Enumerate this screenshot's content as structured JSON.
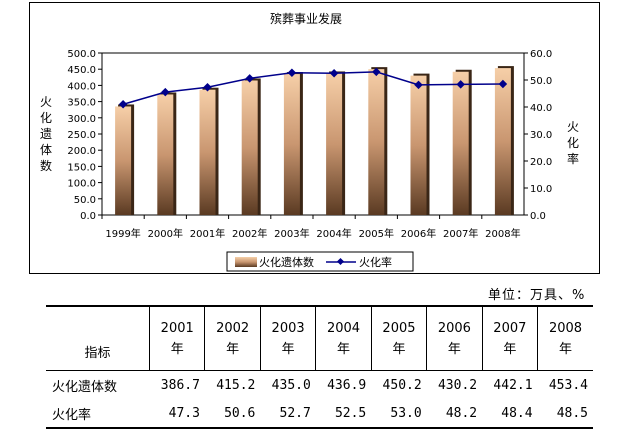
{
  "chart_data": {
    "type": "bar",
    "title": "殡葬事业发展",
    "categories": [
      "1999年",
      "2000年",
      "2001年",
      "2002年",
      "2003年",
      "2004年",
      "2005年",
      "2006年",
      "2007年",
      "2008年"
    ],
    "series": [
      {
        "name": "火化遗体数",
        "type": "bar",
        "axis": "left",
        "values": [
          335,
          372,
          386.7,
          415.2,
          435.0,
          436.9,
          450.2,
          430.2,
          442.1,
          453.4
        ]
      },
      {
        "name": "火化率",
        "type": "line",
        "axis": "right",
        "values": [
          41.0,
          45.5,
          47.3,
          50.6,
          52.7,
          52.5,
          53.0,
          48.2,
          48.4,
          48.5
        ]
      }
    ],
    "ylabel_left": "火化遗体数",
    "ylabel_right": "火化率",
    "ylim_left": [
      0,
      500
    ],
    "ylim_right": [
      0,
      60
    ],
    "yticks_left": [
      "500.0",
      "450.0",
      "400.0",
      "350.0",
      "300.0",
      "250.0",
      "200.0",
      "150.0",
      "100.0",
      "50.0",
      "0.0"
    ],
    "yticks_right": [
      "60.0",
      "50.0",
      "40.0",
      "30.0",
      "20.0",
      "10.0",
      "0.0"
    ],
    "legend_position": "bottom",
    "colors": {
      "bar_top": "#f4c8a0",
      "bar_bottom": "#5a3a22",
      "line": "#00008b"
    }
  },
  "unit_text": "单位：万具、%",
  "table": {
    "header_label": "指标",
    "years": [
      "2001年",
      "2002年",
      "2003年",
      "2004年",
      "2005年",
      "2006年",
      "2007年",
      "2008年"
    ],
    "rows": [
      {
        "label": "火化遗体数",
        "values": [
          "386.7",
          "415.2",
          "435.0",
          "436.9",
          "450.2",
          "430.2",
          "442.1",
          "453.4"
        ]
      },
      {
        "label": "火化率",
        "values": [
          "47.3",
          "50.6",
          "52.7",
          "52.5",
          "53.0",
          "48.2",
          "48.4",
          "48.5"
        ]
      }
    ]
  }
}
